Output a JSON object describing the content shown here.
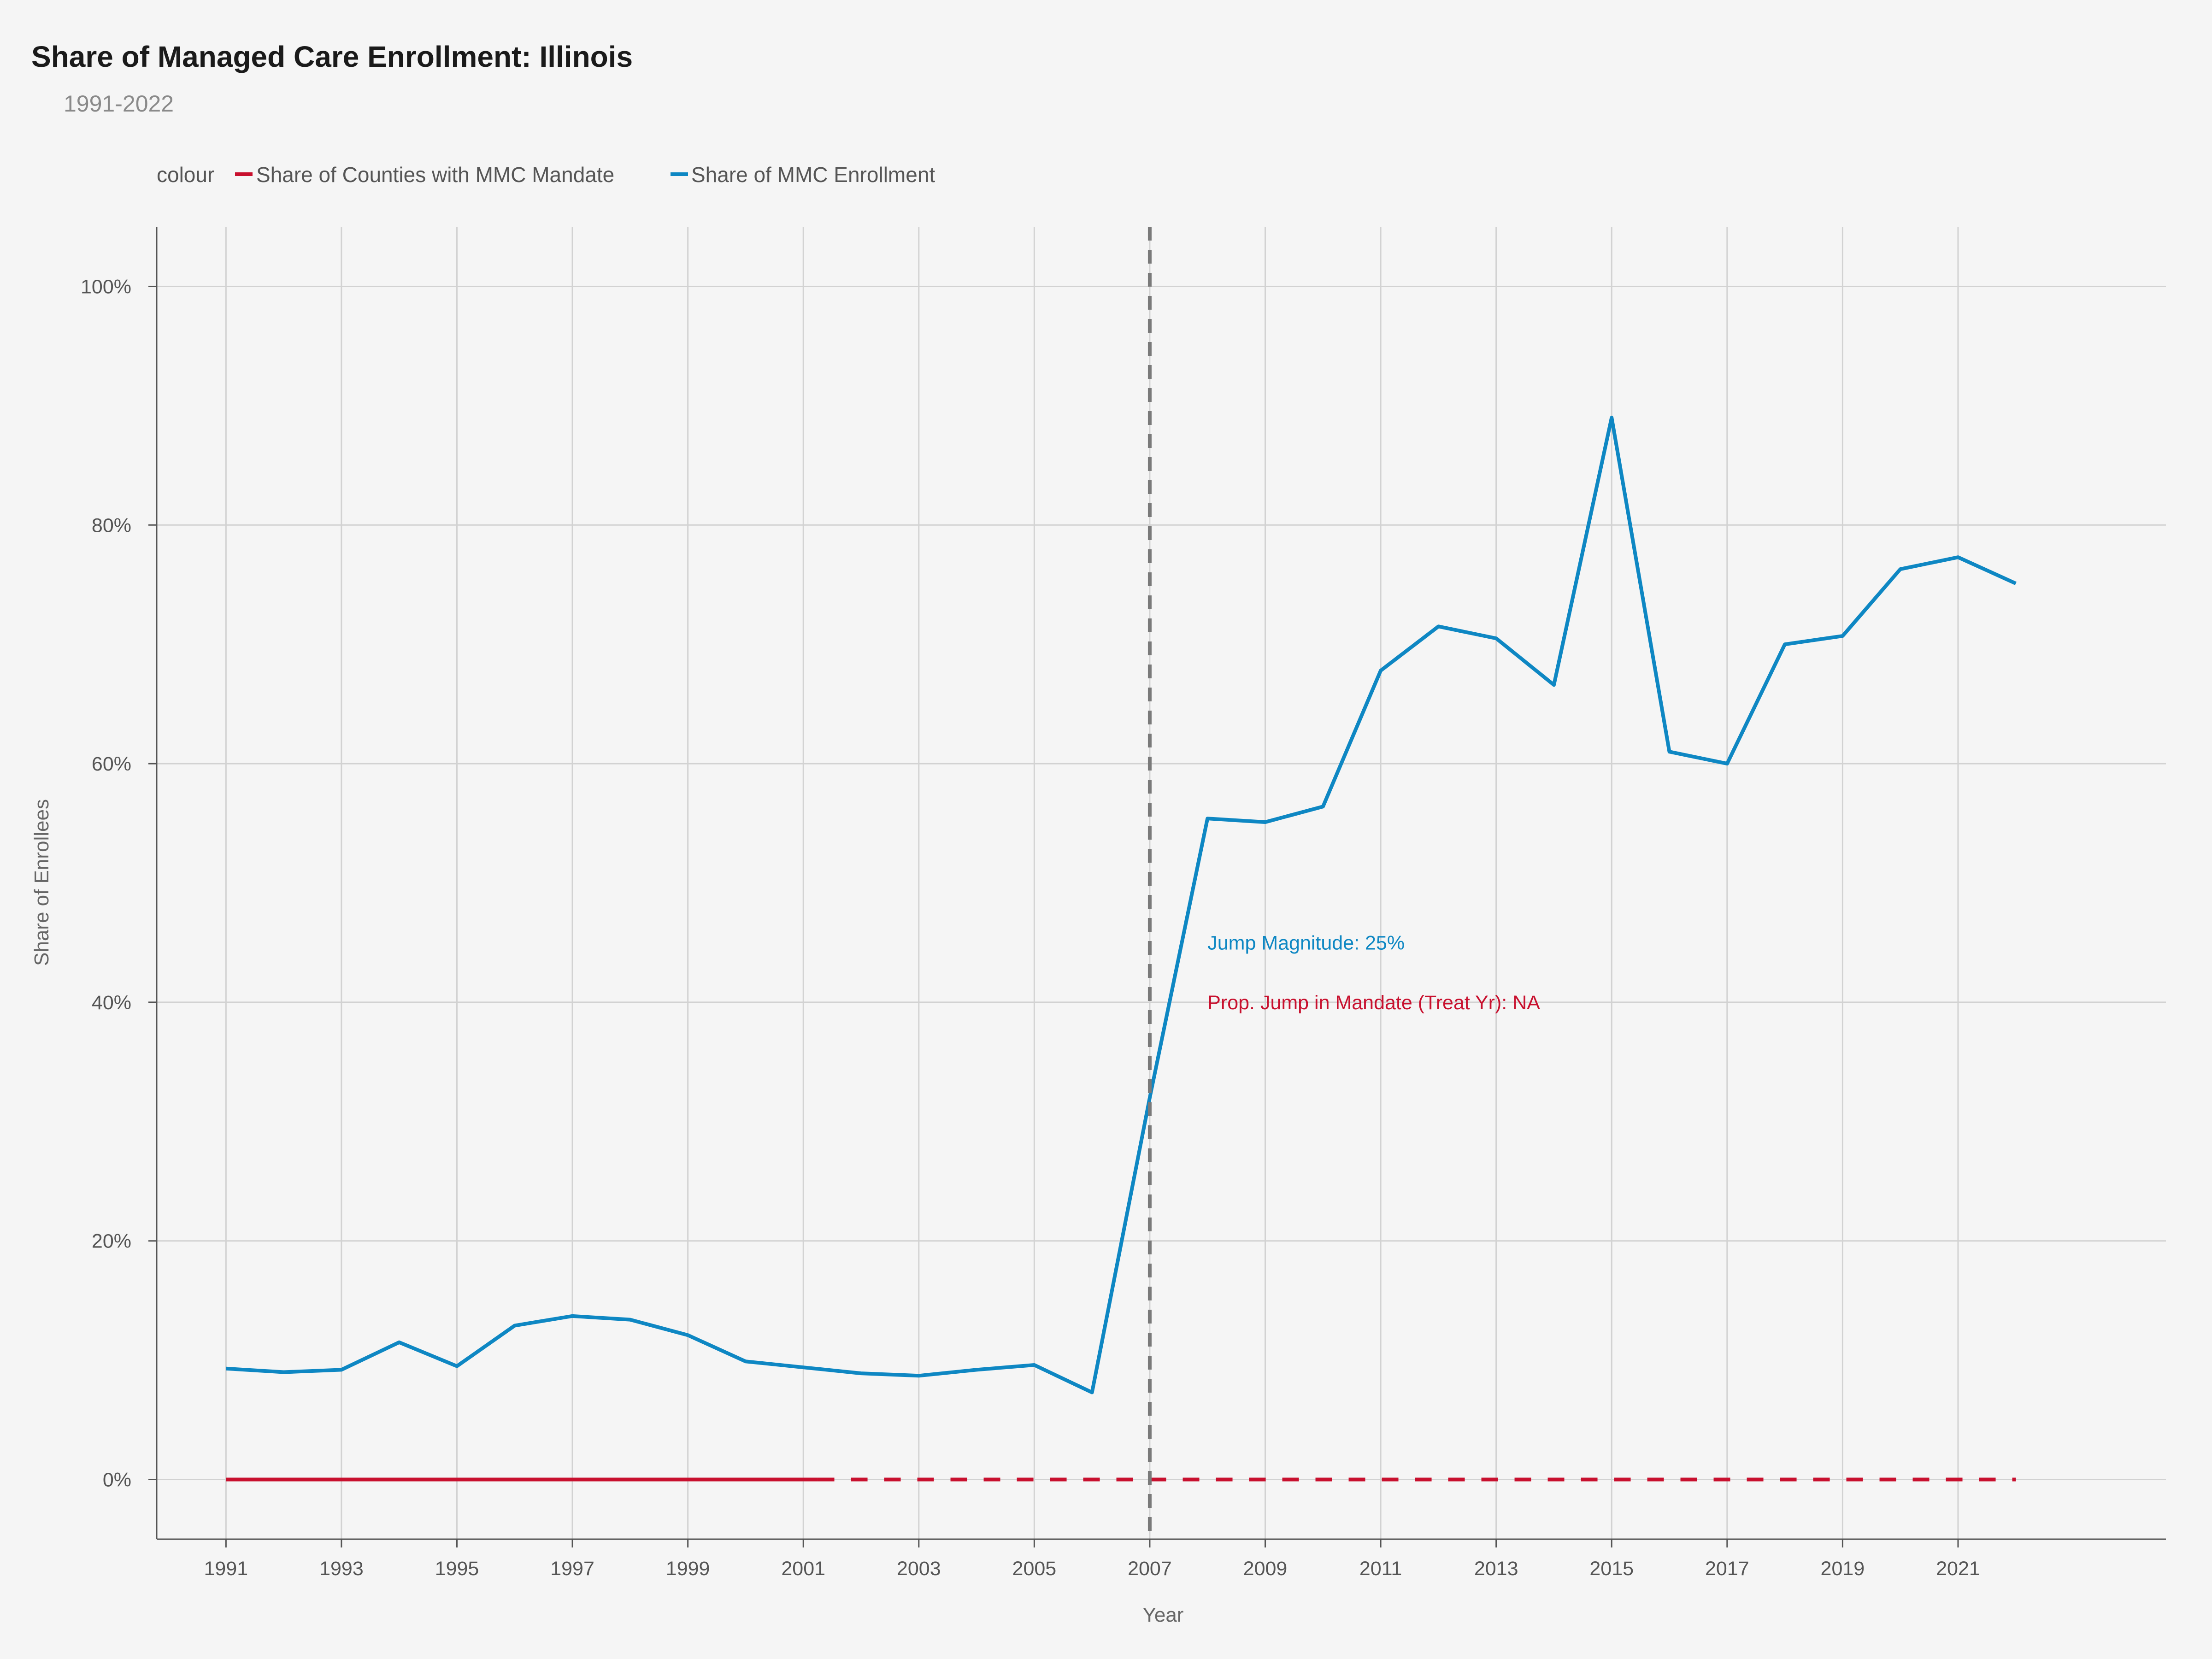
{
  "colors": {
    "enrollment": "#0e87c3",
    "mandate": "#c8102e",
    "treatment_line": "#7a7a7a",
    "grid": "#d2d2d2",
    "background": "#f5f5f5"
  },
  "legend": {
    "title": "colour",
    "placement": "top-left"
  },
  "chart_data": {
    "type": "line",
    "title": "Share of Managed Care Enrollment: Illinois",
    "subtitle": "1991-2022",
    "xlabel": "Year",
    "ylabel": "Share of Enrollees",
    "xlim": [
      1989.8,
      2024.6
    ],
    "ylim": [
      -5,
      105
    ],
    "x_ticks": [
      1991,
      1993,
      1995,
      1997,
      1999,
      2001,
      2003,
      2005,
      2007,
      2009,
      2011,
      2013,
      2015,
      2017,
      2019,
      2021
    ],
    "y_ticks": [
      0,
      20,
      40,
      60,
      80,
      100
    ],
    "y_tick_labels": [
      "0%",
      "20%",
      "40%",
      "60%",
      "80%",
      "100%"
    ],
    "grid": true,
    "treatment_year": 2007,
    "series": [
      {
        "name": "Share of Counties with MMC Mandate",
        "color_key": "mandate",
        "x": [
          1991,
          1992,
          1993,
          1994,
          1995,
          1996,
          1997,
          1998,
          1999,
          2000,
          2001,
          2002,
          2003,
          2004,
          2005,
          2006,
          2007,
          2008,
          2009,
          2010,
          2011,
          2012,
          2013,
          2014,
          2015,
          2016,
          2017,
          2018,
          2019,
          2020,
          2021,
          2022
        ],
        "values": [
          0,
          0,
          0,
          0,
          0,
          0,
          0,
          0,
          0,
          0,
          0,
          0,
          0,
          0,
          0,
          0,
          0,
          0,
          0,
          0,
          0,
          0,
          0,
          0,
          0,
          0,
          0,
          0,
          0,
          0,
          0,
          0
        ],
        "solid_until": 2001,
        "dashed_after": true
      },
      {
        "name": "Share of MMC Enrollment",
        "color_key": "enrollment",
        "x": [
          1991,
          1992,
          1993,
          1994,
          1995,
          1996,
          1997,
          1998,
          1999,
          2000,
          2001,
          2002,
          2003,
          2004,
          2005,
          2006,
          2007,
          2008,
          2009,
          2010,
          2011,
          2012,
          2013,
          2014,
          2015,
          2016,
          2017,
          2018,
          2019,
          2020,
          2021,
          2022
        ],
        "values": [
          9.3,
          9.0,
          9.2,
          11.5,
          9.5,
          12.9,
          13.7,
          13.4,
          12.1,
          9.9,
          9.4,
          8.9,
          8.7,
          9.2,
          9.6,
          7.3,
          32.0,
          55.4,
          55.1,
          56.4,
          67.8,
          71.5,
          70.5,
          66.6,
          89.0,
          61.0,
          60.0,
          70.0,
          70.7,
          76.3,
          77.3,
          75.1
        ]
      }
    ],
    "annotations": [
      {
        "text": "Jump Magnitude: 25%",
        "x": 2008,
        "y": 45,
        "color_key": "enrollment"
      },
      {
        "text": "Prop. Jump in Mandate (Treat Yr): NA",
        "x": 2008,
        "y": 40,
        "color_key": "mandate"
      }
    ]
  }
}
